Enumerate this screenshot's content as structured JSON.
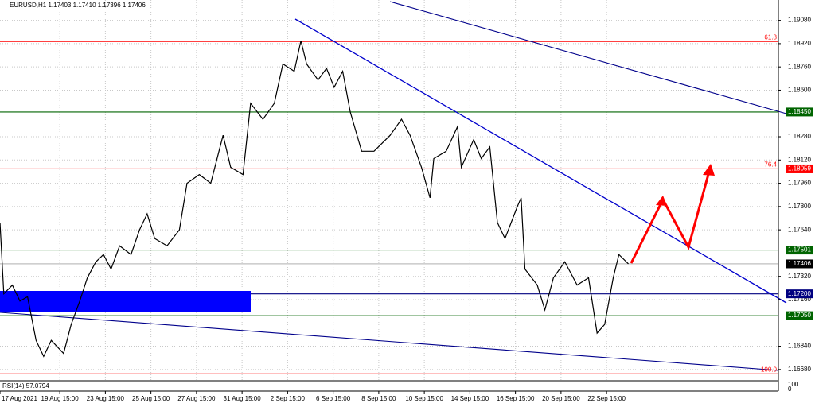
{
  "chart_data": {
    "type": "line",
    "title": "EURUSD,H1  1.17403 1.17410 1.17396 1.17406",
    "x": [
      0,
      4,
      13,
      21,
      29,
      38,
      46,
      54,
      67,
      75,
      84,
      92,
      101,
      109,
      117,
      126,
      138,
      147,
      155,
      163,
      176,
      189,
      197,
      210,
      222,
      235,
      243,
      256,
      264,
      277,
      289,
      298,
      310,
      317,
      323,
      335,
      344,
      352,
      361,
      369,
      381,
      394,
      411,
      423,
      432,
      444,
      453,
      457,
      470,
      482,
      486,
      499,
      507,
      516,
      524,
      532,
      545,
      549,
      553,
      566,
      574,
      583,
      595,
      608,
      620,
      629,
      637,
      646,
      652,
      662
    ],
    "series": [
      {
        "name": "EURUSD",
        "color": "#000000",
        "values": [
          1.1769,
          1.172,
          1.1726,
          1.1715,
          1.1718,
          1.1688,
          1.1677,
          1.1688,
          1.1679,
          1.1699,
          1.1715,
          1.1731,
          1.1742,
          1.1747,
          1.1737,
          1.1753,
          1.1747,
          1.1764,
          1.1775,
          1.1758,
          1.1753,
          1.1764,
          1.1796,
          1.1802,
          1.1796,
          1.1829,
          1.1807,
          1.1802,
          1.1851,
          1.184,
          1.1851,
          1.1878,
          1.1873,
          1.1894,
          1.1878,
          1.1867,
          1.1875,
          1.1862,
          1.1873,
          1.1845,
          1.1818,
          1.1818,
          1.1829,
          1.184,
          1.1829,
          1.1807,
          1.1786,
          1.1813,
          1.1818,
          1.1835,
          1.1807,
          1.1826,
          1.1813,
          1.1821,
          1.1769,
          1.1758,
          1.178,
          1.1786,
          1.1737,
          1.1726,
          1.1709,
          1.1731,
          1.1742,
          1.1726,
          1.1731,
          1.1693,
          1.1699,
          1.1731,
          1.1747,
          1.17406
        ]
      }
    ],
    "xlim": [
      0,
      820
    ],
    "xticks": [
      {
        "value": 0,
        "label": "17 Aug 2021"
      },
      {
        "value": 63,
        "label": "19 Aug 15:00"
      },
      {
        "value": 111,
        "label": "23 Aug 15:00"
      },
      {
        "value": 159,
        "label": "25 Aug 15:00"
      },
      {
        "value": 207,
        "label": "27 Aug 15:00"
      },
      {
        "value": 255,
        "label": "31 Aug 15:00"
      },
      {
        "value": 303,
        "label": "2 Sep 15:00"
      },
      {
        "value": 351,
        "label": "6 Sep 15:00"
      },
      {
        "value": 399,
        "label": "8 Sep 15:00"
      },
      {
        "value": 447,
        "label": "10 Sep 15:00"
      },
      {
        "value": 495,
        "label": "14 Sep 15:00"
      },
      {
        "value": 543,
        "label": "16 Sep 15:00"
      },
      {
        "value": 591,
        "label": "20 Sep 15:00"
      },
      {
        "value": 639,
        "label": "22 Sep 15:00"
      }
    ],
    "ylim": [
      1.16608,
      1.1922
    ],
    "yticks": [
      {
        "value": 1.1668,
        "label": "1.16680"
      },
      {
        "value": 1.1684,
        "label": "1.16840"
      },
      {
        "value": 1.1716,
        "label": "1.17160"
      },
      {
        "value": 1.1732,
        "label": "1.17320"
      },
      {
        "value": 1.1764,
        "label": "1.17640"
      },
      {
        "value": 1.178,
        "label": "1.17800"
      },
      {
        "value": 1.1796,
        "label": "1.17960"
      },
      {
        "value": 1.1812,
        "label": "1.18120"
      },
      {
        "value": 1.1828,
        "label": "1.18280"
      },
      {
        "value": 1.186,
        "label": "1.18600"
      },
      {
        "value": 1.1876,
        "label": "1.18760"
      },
      {
        "value": 1.1892,
        "label": "1.18920"
      },
      {
        "value": 1.1908,
        "label": "1.19080"
      }
    ],
    "grid": true,
    "levels": [
      {
        "value": 1.18935,
        "fib": "61.8",
        "color": "#ff0000"
      },
      {
        "value": 1.1845,
        "label": "1.18450",
        "color": "#006400"
      },
      {
        "value": 1.18059,
        "label": "1.18059",
        "fib": "76.4",
        "color": "#ff0000"
      },
      {
        "value": 1.17501,
        "label": "1.17501",
        "color": "#006400"
      },
      {
        "value": 1.17406,
        "label": "1.17406",
        "color": "#000000"
      },
      {
        "value": 1.172,
        "label": "1.17200",
        "color": "#000080"
      },
      {
        "value": 1.1705,
        "label": "1.17050",
        "color": "#006400"
      },
      {
        "value": 1.1665,
        "fib": "100.0",
        "color": "#ff0000"
      }
    ],
    "rsi": {
      "title": "RSI(14) 57.0794",
      "top": "100",
      "bottom": "0"
    }
  }
}
